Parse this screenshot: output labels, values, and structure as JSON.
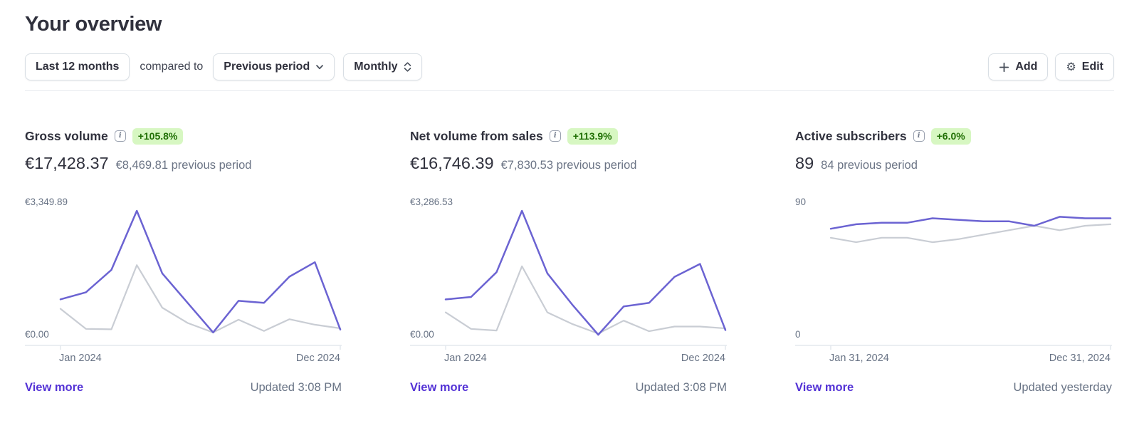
{
  "page": {
    "title": "Your overview"
  },
  "toolbar": {
    "date_range": "Last 12 months",
    "compared_to": "compared to",
    "comparison": "Previous period",
    "granularity": "Monthly",
    "add": "Add",
    "edit": "Edit"
  },
  "colors": {
    "text": "#30313d",
    "muted_text": "#687385",
    "link_purple": "#5433d6",
    "current_period_line": "#6b63d2",
    "previous_period_line": "#c9cdd4",
    "badge_bg": "#d7f7c2",
    "badge_text": "#217005",
    "axis": "#e3e8ee",
    "button_border": "#d8dee4",
    "divider": "#e7eaee"
  },
  "cards": [
    {
      "title": "Gross volume",
      "badge": "+105.8%",
      "value": "€17,428.37",
      "previous": "€8,469.81 previous period",
      "y_max_label": "€3,349.89",
      "y_min_label": "€0.00",
      "x_start_label": "Jan 2024",
      "x_end_label": "Dec 2024",
      "view_more_label": "View more",
      "updated_label": "Updated 3:08 PM"
    },
    {
      "title": "Net volume from sales",
      "badge": "+113.9%",
      "value": "€16,746.39",
      "previous": "€7,830.53 previous period",
      "y_max_label": "€3,286.53",
      "y_min_label": "€0.00",
      "x_start_label": "Jan 2024",
      "x_end_label": "Dec 2024",
      "view_more_label": "View more",
      "updated_label": "Updated 3:08 PM"
    },
    {
      "title": "Active subscribers",
      "badge": "+6.0%",
      "value": "89",
      "previous": "84 previous period",
      "y_max_label": "90",
      "y_min_label": "0",
      "x_start_label": "Jan 31, 2024",
      "x_end_label": "Dec 31, 2024",
      "view_more_label": "View more",
      "updated_label": "Updated yesterday"
    }
  ],
  "chart_data": [
    {
      "type": "line",
      "title": "Gross volume",
      "x": [
        "Jan 2024",
        "Feb 2024",
        "Mar 2024",
        "Apr 2024",
        "May 2024",
        "Jun 2024",
        "Jul 2024",
        "Aug 2024",
        "Sep 2024",
        "Oct 2024",
        "Nov 2024",
        "Dec 2024"
      ],
      "ylim": [
        0,
        3349.89
      ],
      "y_tick_labels": [
        "€0.00",
        "€3,349.89"
      ],
      "x_tick_labels": [
        "Jan 2024",
        "Dec 2024"
      ],
      "grid": false,
      "legend": "none",
      "series": [
        {
          "name": "Last 12 months",
          "color": "#6b63d2",
          "width": 2.5,
          "values": [
            1146,
            1322,
            1881,
            3349.89,
            1793,
            1058,
            323,
            1110,
            1058,
            1710,
            2070,
            395
          ]
        },
        {
          "name": "Previous period",
          "color": "#c9cdd4",
          "width": 2.2,
          "values": [
            911,
            411,
            400,
            1998,
            940,
            558,
            323,
            640,
            360,
            652,
            515,
            425
          ]
        }
      ]
    },
    {
      "type": "line",
      "title": "Net volume from sales",
      "x": [
        "Jan 2024",
        "Feb 2024",
        "Mar 2024",
        "Apr 2024",
        "May 2024",
        "Jun 2024",
        "Jul 2024",
        "Aug 2024",
        "Sep 2024",
        "Oct 2024",
        "Nov 2024",
        "Dec 2024"
      ],
      "ylim": [
        0,
        3286.53
      ],
      "y_tick_labels": [
        "€0.00",
        "€3,286.53"
      ],
      "x_tick_labels": [
        "Jan 2024",
        "Dec 2024"
      ],
      "grid": false,
      "legend": "none",
      "series": [
        {
          "name": "Last 12 months",
          "color": "#6b63d2",
          "width": 2.5,
          "values": [
            1124,
            1182,
            1788,
            3286.53,
            1759,
            980,
            260,
            951,
            1038,
            1672,
            1990,
            375
          ]
        },
        {
          "name": "Previous period",
          "color": "#c9cdd4",
          "width": 2.2,
          "values": [
            807,
            404,
            363,
            1932,
            807,
            519,
            288,
            606,
            346,
            461,
            461,
            415
          ]
        }
      ]
    },
    {
      "type": "line",
      "title": "Active subscribers",
      "x": [
        "Jan 31, 2024",
        "Feb 29, 2024",
        "Mar 31, 2024",
        "Apr 30, 2024",
        "May 31, 2024",
        "Jun 30, 2024",
        "Jul 31, 2024",
        "Aug 31, 2024",
        "Sep 30, 2024",
        "Oct 31, 2024",
        "Nov 30, 2024",
        "Dec 31, 2024"
      ],
      "ylim": [
        0,
        90
      ],
      "y_tick_labels": [
        "0",
        "90"
      ],
      "x_tick_labels": [
        "Jan 31, 2024",
        "Dec 31, 2024"
      ],
      "grid": false,
      "legend": "none",
      "series": [
        {
          "name": "Last 12 months",
          "color": "#6b63d2",
          "width": 2.5,
          "values": [
            78,
            81,
            82,
            82,
            85,
            84,
            83,
            83,
            80,
            86,
            85,
            85
          ]
        },
        {
          "name": "Previous period",
          "color": "#c9cdd4",
          "width": 2.2,
          "values": [
            72,
            69,
            72,
            72,
            69,
            71,
            74,
            77,
            80,
            77,
            80,
            81
          ]
        }
      ]
    }
  ]
}
